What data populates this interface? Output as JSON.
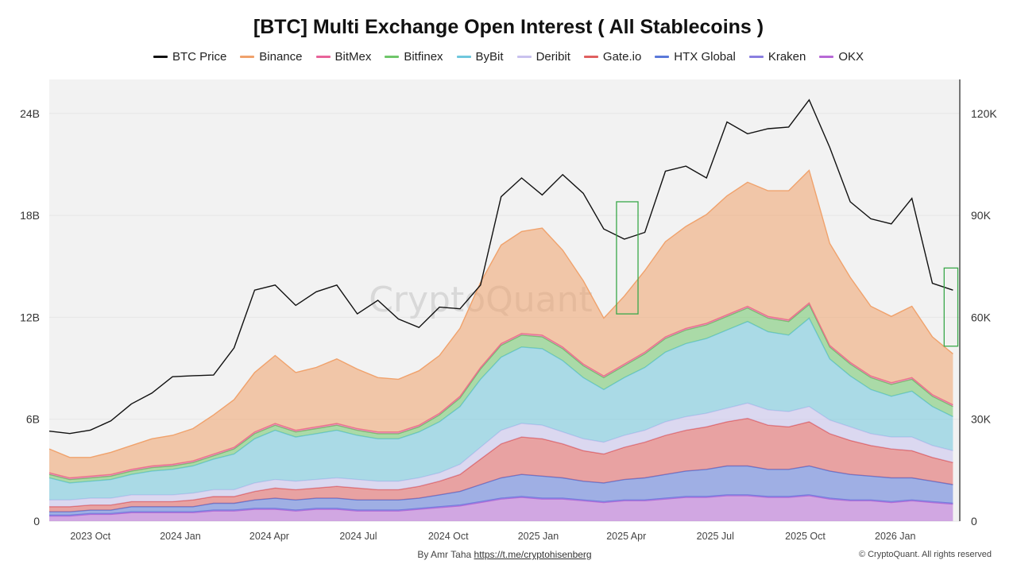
{
  "title": "[BTC] Multi Exchange Open Interest ( All Stablecoins )",
  "legend": [
    {
      "label": "BTC Price",
      "color": "#111111"
    },
    {
      "label": "Binance",
      "color": "#f0a26c"
    },
    {
      "label": "BitMex",
      "color": "#e8649a"
    },
    {
      "label": "Bitfinex",
      "color": "#6fc66a"
    },
    {
      "label": "ByBit",
      "color": "#6fc7dd"
    },
    {
      "label": "Deribit",
      "color": "#c9c2ee"
    },
    {
      "label": "Gate.io",
      "color": "#e06060"
    },
    {
      "label": "HTX Global",
      "color": "#5b79d9"
    },
    {
      "label": "Kraken",
      "color": "#8a7fe0"
    },
    {
      "label": "OKX",
      "color": "#b769d6"
    }
  ],
  "footer": {
    "author_prefix": "By Amr Taha",
    "author_link": "https://t.me/cryptohisenberg",
    "copyright": "© CryptoQuant. All rights reserved"
  },
  "watermark": "CryptoQuant",
  "chart_data": {
    "type": "area",
    "stacked": true,
    "x": [
      "2023-08-20",
      "2023-09-10",
      "2023-10-01",
      "2023-10-22",
      "2023-11-12",
      "2023-12-03",
      "2023-12-24",
      "2024-01-14",
      "2024-02-04",
      "2024-02-25",
      "2024-03-17",
      "2024-04-07",
      "2024-04-28",
      "2024-05-19",
      "2024-06-09",
      "2024-06-30",
      "2024-07-21",
      "2024-08-11",
      "2024-09-01",
      "2024-09-22",
      "2024-10-13",
      "2024-11-03",
      "2024-11-24",
      "2024-12-15",
      "2025-01-05",
      "2025-01-26",
      "2025-02-16",
      "2025-03-09",
      "2025-03-30",
      "2025-04-20",
      "2025-05-11",
      "2025-06-01",
      "2025-06-22",
      "2025-07-13",
      "2025-08-03",
      "2025-08-24",
      "2025-09-14",
      "2025-10-05",
      "2025-10-26",
      "2025-11-16",
      "2025-12-07",
      "2025-12-28",
      "2026-01-18",
      "2026-02-08",
      "2026-03-01"
    ],
    "x_ticks": [
      "2023 Oct",
      "2024 Jan",
      "2024 Apr",
      "2024 Jul",
      "2024 Oct",
      "2025 Jan",
      "2025 Apr",
      "2025 Jul",
      "2025 Oct",
      "2026 Jan"
    ],
    "x_tick_dates": [
      "2023-10-01",
      "2024-01-01",
      "2024-04-01",
      "2024-07-01",
      "2024-10-01",
      "2025-01-01",
      "2025-04-01",
      "2025-07-01",
      "2025-10-01",
      "2026-01-01"
    ],
    "x_range": [
      "2023-08-20",
      "2026-03-08"
    ],
    "y_left": {
      "ticks": [
        "0",
        "6B",
        "12B",
        "18B",
        "24B"
      ],
      "ylim": [
        0,
        26000000000
      ]
    },
    "y_right": {
      "ticks": [
        "0",
        "30K",
        "60K",
        "90K",
        "120K"
      ],
      "ylim": [
        0,
        130000
      ]
    },
    "grid": true,
    "legend_position": "top",
    "series": [
      {
        "name": "OKX",
        "color": "#b769d6",
        "axis": "left",
        "values": [
          0.3,
          0.3,
          0.4,
          0.4,
          0.5,
          0.5,
          0.5,
          0.5,
          0.6,
          0.6,
          0.7,
          0.7,
          0.6,
          0.7,
          0.7,
          0.6,
          0.6,
          0.6,
          0.7,
          0.8,
          0.9,
          1.1,
          1.3,
          1.4,
          1.3,
          1.3,
          1.2,
          1.1,
          1.2,
          1.2,
          1.3,
          1.4,
          1.4,
          1.5,
          1.5,
          1.4,
          1.4,
          1.5,
          1.3,
          1.2,
          1.2,
          1.1,
          1.2,
          1.1,
          1.0
        ]
      },
      {
        "name": "Kraken",
        "color": "#8a7fe0",
        "axis": "left",
        "values": [
          0.05,
          0.05,
          0.05,
          0.05,
          0.05,
          0.05,
          0.05,
          0.05,
          0.05,
          0.05,
          0.05,
          0.05,
          0.05,
          0.05,
          0.05,
          0.05,
          0.05,
          0.05,
          0.05,
          0.05,
          0.05,
          0.05,
          0.05,
          0.05,
          0.05,
          0.05,
          0.05,
          0.05,
          0.05,
          0.05,
          0.05,
          0.05,
          0.05,
          0.05,
          0.05,
          0.05,
          0.05,
          0.05,
          0.05,
          0.05,
          0.05,
          0.05,
          0.05,
          0.05,
          0.05
        ]
      },
      {
        "name": "HTX Global",
        "color": "#5b79d9",
        "axis": "left",
        "values": [
          0.2,
          0.2,
          0.2,
          0.2,
          0.3,
          0.3,
          0.3,
          0.3,
          0.4,
          0.4,
          0.5,
          0.6,
          0.6,
          0.6,
          0.6,
          0.6,
          0.6,
          0.6,
          0.6,
          0.7,
          0.8,
          1.0,
          1.2,
          1.3,
          1.3,
          1.2,
          1.1,
          1.1,
          1.2,
          1.3,
          1.4,
          1.5,
          1.6,
          1.7,
          1.7,
          1.6,
          1.6,
          1.7,
          1.6,
          1.5,
          1.4,
          1.4,
          1.3,
          1.2,
          1.1
        ]
      },
      {
        "name": "Gate.io",
        "color": "#e06060",
        "axis": "left",
        "values": [
          0.3,
          0.3,
          0.3,
          0.3,
          0.3,
          0.3,
          0.3,
          0.4,
          0.4,
          0.4,
          0.5,
          0.6,
          0.6,
          0.6,
          0.7,
          0.7,
          0.6,
          0.6,
          0.7,
          0.8,
          1.0,
          1.5,
          2.0,
          2.2,
          2.2,
          2.0,
          1.8,
          1.7,
          1.9,
          2.1,
          2.3,
          2.4,
          2.5,
          2.6,
          2.8,
          2.6,
          2.5,
          2.6,
          2.2,
          2.0,
          1.8,
          1.7,
          1.6,
          1.4,
          1.3
        ]
      },
      {
        "name": "Deribit",
        "color": "#c9c2ee",
        "axis": "left",
        "values": [
          0.4,
          0.4,
          0.4,
          0.4,
          0.4,
          0.4,
          0.4,
          0.4,
          0.4,
          0.4,
          0.5,
          0.5,
          0.5,
          0.5,
          0.5,
          0.5,
          0.5,
          0.5,
          0.5,
          0.5,
          0.6,
          0.7,
          0.8,
          0.8,
          0.8,
          0.7,
          0.7,
          0.7,
          0.7,
          0.7,
          0.8,
          0.8,
          0.8,
          0.8,
          0.9,
          0.9,
          0.9,
          0.9,
          0.8,
          0.8,
          0.7,
          0.7,
          0.8,
          0.7,
          0.7
        ]
      },
      {
        "name": "ByBit",
        "color": "#6fc7dd",
        "axis": "left",
        "values": [
          1.3,
          1.0,
          1.0,
          1.1,
          1.2,
          1.4,
          1.5,
          1.6,
          1.8,
          2.1,
          2.6,
          2.9,
          2.6,
          2.7,
          2.8,
          2.6,
          2.5,
          2.5,
          2.7,
          3.0,
          3.4,
          4.0,
          4.3,
          4.5,
          4.5,
          4.2,
          3.6,
          3.1,
          3.4,
          3.7,
          4.1,
          4.3,
          4.4,
          4.6,
          4.8,
          4.6,
          4.5,
          5.2,
          3.6,
          3.0,
          2.6,
          2.4,
          2.7,
          2.3,
          2.0
        ]
      },
      {
        "name": "Bitfinex",
        "color": "#6fc66a",
        "axis": "left",
        "values": [
          0.2,
          0.2,
          0.2,
          0.2,
          0.2,
          0.2,
          0.2,
          0.2,
          0.2,
          0.3,
          0.3,
          0.3,
          0.3,
          0.3,
          0.3,
          0.3,
          0.3,
          0.3,
          0.3,
          0.4,
          0.5,
          0.6,
          0.7,
          0.7,
          0.7,
          0.7,
          0.7,
          0.7,
          0.7,
          0.8,
          0.8,
          0.8,
          0.8,
          0.8,
          0.8,
          0.8,
          0.8,
          0.8,
          0.7,
          0.7,
          0.7,
          0.7,
          0.7,
          0.6,
          0.6
        ]
      },
      {
        "name": "BitMex",
        "color": "#e8649a",
        "axis": "left",
        "values": [
          0.1,
          0.1,
          0.1,
          0.1,
          0.1,
          0.1,
          0.1,
          0.1,
          0.1,
          0.1,
          0.1,
          0.1,
          0.1,
          0.1,
          0.1,
          0.1,
          0.1,
          0.1,
          0.1,
          0.1,
          0.1,
          0.1,
          0.1,
          0.1,
          0.1,
          0.1,
          0.1,
          0.1,
          0.1,
          0.1,
          0.1,
          0.1,
          0.1,
          0.1,
          0.1,
          0.1,
          0.1,
          0.1,
          0.1,
          0.1,
          0.1,
          0.1,
          0.1,
          0.1,
          0.1
        ]
      },
      {
        "name": "Binance",
        "color": "#f0a26c",
        "axis": "left",
        "values": [
          1.4,
          1.2,
          1.1,
          1.3,
          1.4,
          1.6,
          1.7,
          1.9,
          2.3,
          2.8,
          3.5,
          4.0,
          3.4,
          3.5,
          3.8,
          3.5,
          3.2,
          3.1,
          3.2,
          3.4,
          4.0,
          5.0,
          5.8,
          6.0,
          6.3,
          5.7,
          4.9,
          3.4,
          4.0,
          4.8,
          5.6,
          6.0,
          6.4,
          7.0,
          7.3,
          7.4,
          7.6,
          7.8,
          6.0,
          5.0,
          4.1,
          3.9,
          4.2,
          3.4,
          3.0
        ]
      },
      {
        "name": "BTC Price",
        "color": "#111111",
        "axis": "right",
        "values": [
          26500,
          25800,
          26800,
          29500,
          34500,
          37700,
          42500,
          42800,
          43000,
          51000,
          68000,
          69500,
          63500,
          67500,
          69500,
          61000,
          65000,
          59500,
          57000,
          63000,
          62500,
          69500,
          95500,
          101000,
          96000,
          102000,
          96500,
          86000,
          83000,
          85000,
          103000,
          104500,
          101000,
          117500,
          114000,
          115500,
          116000,
          124000,
          110000,
          94000,
          89000,
          87500,
          95000,
          70000,
          68000
        ]
      }
    ],
    "annotations": [
      {
        "type": "box",
        "color": "#3aa84a",
        "x_range": [
          "2025-03-22",
          "2025-04-13"
        ],
        "y_range_left": [
          12200000000,
          18800000000
        ]
      },
      {
        "type": "box",
        "color": "#3aa84a",
        "x_range": [
          "2026-02-20",
          "2026-03-06"
        ],
        "y_range_left": [
          10300000000,
          14900000000
        ]
      }
    ]
  }
}
